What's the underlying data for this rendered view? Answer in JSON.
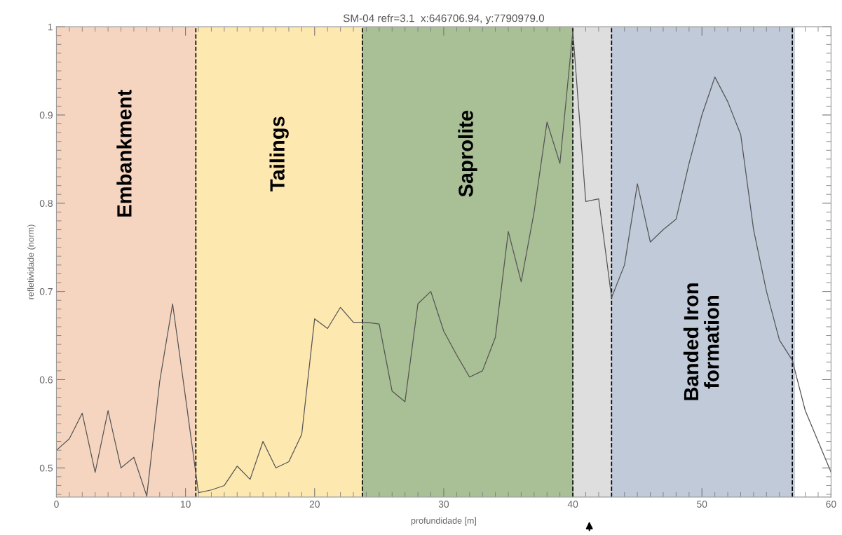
{
  "chart_data": {
    "type": "line",
    "title": "SM-04 refr=3.1  x:646706.94, y:7790979.0",
    "xlabel": "profundidade [m]",
    "ylabel": "refletividade (norm)",
    "x": [
      0,
      1,
      2,
      3,
      4,
      5,
      6,
      7,
      8,
      9,
      10,
      11,
      12,
      13,
      14,
      15,
      16,
      17,
      18,
      19,
      20,
      21,
      22,
      23,
      24,
      25,
      26,
      27,
      28,
      29,
      30,
      31,
      32,
      33,
      34,
      35,
      36,
      37,
      38,
      39,
      40,
      41,
      42,
      43,
      44,
      45,
      46,
      47,
      48,
      49,
      50,
      51,
      52,
      53,
      54,
      55,
      56,
      57,
      58,
      59,
      60
    ],
    "series": [
      {
        "color": "#555555",
        "values": [
          0.52,
          0.533,
          0.562,
          0.495,
          0.565,
          0.5,
          0.512,
          0.468,
          0.598,
          0.686,
          0.58,
          0.472,
          0.475,
          0.48,
          0.502,
          0.487,
          0.53,
          0.5,
          0.507,
          0.538,
          0.669,
          0.658,
          0.682,
          0.665,
          0.665,
          0.663,
          0.587,
          0.575,
          0.686,
          0.7,
          0.655,
          0.628,
          0.603,
          0.61,
          0.648,
          0.768,
          0.711,
          0.79,
          0.892,
          0.845,
          0.995,
          0.802,
          0.805,
          0.693,
          0.73,
          0.822,
          0.756,
          0.77,
          0.782,
          0.845,
          0.9,
          0.943,
          0.915,
          0.878,
          0.77,
          0.7,
          0.645,
          0.622,
          0.565,
          0.53,
          0.495
        ]
      }
    ],
    "xlim": [
      0,
      60
    ],
    "ylim": [
      0.467,
      1
    ],
    "xticks": [
      0,
      10,
      20,
      30,
      40,
      50,
      60
    ],
    "yticks": [
      0.5,
      0.6,
      0.7,
      0.8,
      0.9,
      1
    ],
    "bands": [
      {
        "axis": "x",
        "from": 0,
        "to": 10.8,
        "color": "#f6d5c0",
        "label": "Embankment"
      },
      {
        "axis": "x",
        "from": 10.8,
        "to": 23.7,
        "color": "#fde8b0",
        "label": "Tailings"
      },
      {
        "axis": "x",
        "from": 23.7,
        "to": 40,
        "color": "#a9bf96",
        "label": "Saprolite"
      },
      {
        "axis": "x",
        "from": 40,
        "to": 43,
        "color": "#dedede"
      },
      {
        "axis": "x",
        "from": 43,
        "to": 57.2,
        "color": "#c0cad8",
        "label": "Banded Iron\nformation"
      }
    ],
    "ref_lines": [
      {
        "axis": "x",
        "value": 10.8,
        "color": "#000000",
        "line_style": "dashed"
      },
      {
        "axis": "x",
        "value": 23.7,
        "color": "#000000",
        "line_style": "dashed"
      },
      {
        "axis": "x",
        "value": 40,
        "color": "#000000",
        "line_style": "dashed"
      },
      {
        "axis": "x",
        "value": 43,
        "color": "#000000",
        "line_style": "dashed"
      },
      {
        "axis": "x",
        "value": 57,
        "color": "#000000",
        "line_style": "dashed"
      }
    ],
    "grid": false,
    "legend": false,
    "marker": "none",
    "line_style": "solid"
  }
}
